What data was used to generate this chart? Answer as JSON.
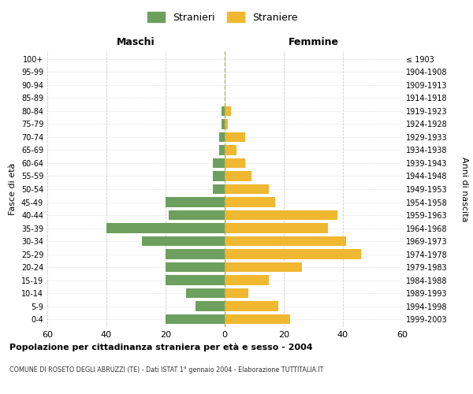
{
  "age_groups": [
    "100+",
    "95-99",
    "90-94",
    "85-89",
    "80-84",
    "75-79",
    "70-74",
    "65-69",
    "60-64",
    "55-59",
    "50-54",
    "45-49",
    "40-44",
    "35-39",
    "30-34",
    "25-29",
    "20-24",
    "15-19",
    "10-14",
    "5-9",
    "0-4"
  ],
  "birth_years": [
    "≤ 1903",
    "1904-1908",
    "1909-1913",
    "1914-1918",
    "1919-1923",
    "1924-1928",
    "1929-1933",
    "1934-1938",
    "1939-1943",
    "1944-1948",
    "1949-1953",
    "1954-1958",
    "1959-1963",
    "1964-1968",
    "1969-1973",
    "1974-1978",
    "1979-1983",
    "1984-1988",
    "1989-1993",
    "1994-1998",
    "1999-2003"
  ],
  "males": [
    0,
    0,
    0,
    0,
    1,
    1,
    2,
    2,
    4,
    4,
    4,
    20,
    19,
    40,
    28,
    20,
    20,
    20,
    13,
    10,
    20
  ],
  "females": [
    0,
    0,
    0,
    0,
    2,
    1,
    7,
    4,
    7,
    9,
    15,
    17,
    38,
    35,
    41,
    46,
    26,
    15,
    8,
    18,
    22
  ],
  "male_color": "#6d9f5e",
  "female_color": "#f0b730",
  "background_color": "#ffffff",
  "grid_color": "#cccccc",
  "title": "Popolazione per cittadinanza straniera per età e sesso - 2004",
  "subtitle": "COMUNE DI ROSETO DEGLI ABRUZZI (TE) - Dati ISTAT 1° gennaio 2004 - Elaborazione TUTTITALIA.IT",
  "xlabel_left": "Maschi",
  "xlabel_right": "Femmine",
  "ylabel_left": "Fasce di età",
  "ylabel_right": "Anni di nascita",
  "legend_male": "Stranieri",
  "legend_female": "Straniere",
  "xlim": 60,
  "bar_height": 0.75,
  "dashed_line_color": "#aaaaaa"
}
